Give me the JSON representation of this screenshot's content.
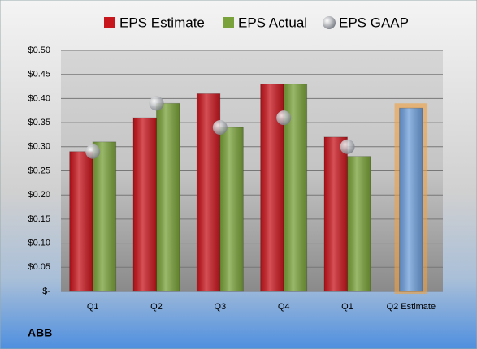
{
  "chart_data": {
    "type": "bar",
    "categories": [
      "Q1",
      "Q2",
      "Q3",
      "Q4",
      "Q1",
      "Q2 Estimate"
    ],
    "series": [
      {
        "name": "EPS Estimate",
        "color": "#c8161d",
        "values": [
          0.29,
          0.36,
          0.41,
          0.43,
          0.32,
          0.38
        ]
      },
      {
        "name": "EPS Actual",
        "color": "#7aa23a",
        "values": [
          0.31,
          0.39,
          0.34,
          0.43,
          0.28,
          null
        ]
      },
      {
        "name": "EPS GAAP",
        "color": "#b8bcc4",
        "marker": "circle",
        "values": [
          0.29,
          0.39,
          0.34,
          0.36,
          0.3,
          null
        ]
      }
    ],
    "highlight_color": "#6fa0dc",
    "ylim": [
      0,
      0.5
    ],
    "yticks": [
      {
        "value": 0,
        "label": "$-"
      },
      {
        "value": 0.05,
        "label": "$0.05"
      },
      {
        "value": 0.1,
        "label": "$0.10"
      },
      {
        "value": 0.15,
        "label": "$0.15"
      },
      {
        "value": 0.2,
        "label": "$0.20"
      },
      {
        "value": 0.25,
        "label": "$0.25"
      },
      {
        "value": 0.3,
        "label": "$0.30"
      },
      {
        "value": 0.35,
        "label": "$0.35"
      },
      {
        "value": 0.4,
        "label": "$0.40"
      },
      {
        "value": 0.45,
        "label": "$0.45"
      },
      {
        "value": 0.5,
        "label": "$0.50"
      }
    ],
    "grid": true,
    "legend": "top",
    "footnote": "ABB"
  }
}
